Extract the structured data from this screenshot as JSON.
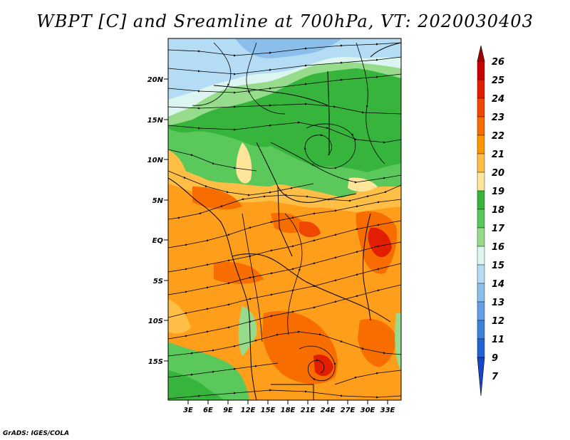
{
  "title": "WBPT [C] and Sreamline at 700hPa, VT: 2020030403",
  "footer": "GrADS: IGES/COLA",
  "map": {
    "lat_ticks": [
      "20N",
      "15N",
      "10N",
      "5N",
      "EQ",
      "5S",
      "10S",
      "15S"
    ],
    "lon_ticks": [
      "3E",
      "6E",
      "9E",
      "12E",
      "15E",
      "18E",
      "21E",
      "24E",
      "27E",
      "30E",
      "33E"
    ]
  },
  "colorbar": {
    "levels": [
      {
        "label": "26",
        "color": "#a50000"
      },
      {
        "label": "25",
        "color": "#c80000"
      },
      {
        "label": "24",
        "color": "#e11f00"
      },
      {
        "label": "23",
        "color": "#f04700"
      },
      {
        "label": "22",
        "color": "#f86d00"
      },
      {
        "label": "21",
        "color": "#ff9600"
      },
      {
        "label": "20",
        "color": "#ffbe46"
      },
      {
        "label": "19",
        "color": "#ffe69b"
      },
      {
        "label": "18",
        "color": "#37b43c"
      },
      {
        "label": "17",
        "color": "#5ac85a"
      },
      {
        "label": "16",
        "color": "#96dc8c"
      },
      {
        "label": "15",
        "color": "#dcf5f0"
      },
      {
        "label": "14",
        "color": "#b4dcf5"
      },
      {
        "label": "13",
        "color": "#8cbeeb"
      },
      {
        "label": "12",
        "color": "#64a0e6"
      },
      {
        "label": "11",
        "color": "#3c82dc"
      },
      {
        "label": "9",
        "color": "#2364d2"
      },
      {
        "label": "7",
        "color": "#1446c8"
      }
    ]
  }
}
